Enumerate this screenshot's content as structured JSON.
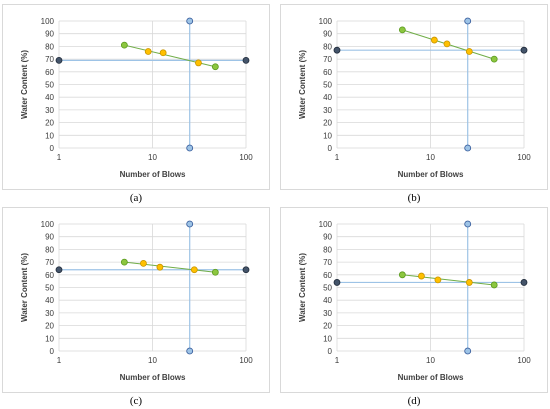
{
  "colors": {
    "wet_point": "#8cc63f",
    "wet_point_stroke": "#5a9a1e",
    "mid_point": "#ffc000",
    "mid_point_stroke": "#c89400",
    "trend_line": "#70ad47",
    "ref_line": "#9dc3e6",
    "ref_marker": "#9dc3e6",
    "ref_marker_stroke": "#2f5597",
    "ll_marker": "#44546a",
    "ll_marker_stroke": "#1f2a3a",
    "grid": "#d9d9d9"
  },
  "chart_data": [
    {
      "id": "a",
      "type": "scatter",
      "caption": "(a)",
      "xlabel": "Number of Blows",
      "ylabel": "Water Content (%)",
      "x_scale": "log",
      "xlim": [
        1,
        100
      ],
      "ylim": [
        0,
        100
      ],
      "x_ticks": [
        "1",
        "10",
        "100"
      ],
      "y_ticks": [
        "0",
        "10",
        "20",
        "30",
        "40",
        "50",
        "60",
        "70",
        "80",
        "90",
        "100"
      ],
      "trend": [
        [
          5,
          81
        ],
        [
          47,
          64
        ]
      ],
      "points": [
        {
          "x": 5,
          "y": 81,
          "kind": "wet"
        },
        {
          "x": 9,
          "y": 76,
          "kind": "mid"
        },
        {
          "x": 13,
          "y": 75,
          "kind": "mid"
        },
        {
          "x": 31,
          "y": 67,
          "kind": "mid"
        },
        {
          "x": 47,
          "y": 64,
          "kind": "wet"
        }
      ],
      "ref_vertical": {
        "x": 25,
        "y_bottom": 0,
        "y_top": 100
      },
      "liquid_limit": 69
    },
    {
      "id": "b",
      "type": "scatter",
      "caption": "(b)",
      "xlabel": "Number of Blows",
      "ylabel": "Water Content (%)",
      "x_scale": "log",
      "xlim": [
        1,
        100
      ],
      "ylim": [
        0,
        100
      ],
      "x_ticks": [
        "1",
        "10",
        "100"
      ],
      "y_ticks": [
        "0",
        "10",
        "20",
        "30",
        "40",
        "50",
        "60",
        "70",
        "80",
        "90",
        "100"
      ],
      "trend": [
        [
          5,
          93
        ],
        [
          48,
          70
        ]
      ],
      "points": [
        {
          "x": 5,
          "y": 93,
          "kind": "wet"
        },
        {
          "x": 11,
          "y": 85,
          "kind": "mid"
        },
        {
          "x": 15,
          "y": 82,
          "kind": "mid"
        },
        {
          "x": 26,
          "y": 76,
          "kind": "mid"
        },
        {
          "x": 48,
          "y": 70,
          "kind": "wet"
        }
      ],
      "ref_vertical": {
        "x": 25,
        "y_bottom": 0,
        "y_top": 100
      },
      "liquid_limit": 77
    },
    {
      "id": "c",
      "type": "scatter",
      "caption": "(c)",
      "xlabel": "Number of Blows",
      "ylabel": "Water Content (%)",
      "x_scale": "log",
      "xlim": [
        1,
        100
      ],
      "ylim": [
        0,
        100
      ],
      "x_ticks": [
        "1",
        "10",
        "100"
      ],
      "y_ticks": [
        "0",
        "10",
        "20",
        "30",
        "40",
        "50",
        "60",
        "70",
        "80",
        "90",
        "100"
      ],
      "trend": [
        [
          5,
          70
        ],
        [
          47,
          62
        ]
      ],
      "points": [
        {
          "x": 5,
          "y": 70,
          "kind": "wet"
        },
        {
          "x": 8,
          "y": 69,
          "kind": "mid"
        },
        {
          "x": 12,
          "y": 66,
          "kind": "mid"
        },
        {
          "x": 28,
          "y": 64,
          "kind": "mid"
        },
        {
          "x": 47,
          "y": 62,
          "kind": "wet"
        }
      ],
      "ref_vertical": {
        "x": 25,
        "y_bottom": 0,
        "y_top": 100
      },
      "liquid_limit": 64
    },
    {
      "id": "d",
      "type": "scatter",
      "caption": "(d)",
      "xlabel": "Number of Blows",
      "ylabel": "Water Content (%)",
      "x_scale": "log",
      "xlim": [
        1,
        100
      ],
      "ylim": [
        0,
        100
      ],
      "x_ticks": [
        "1",
        "10",
        "100"
      ],
      "y_ticks": [
        "0",
        "10",
        "20",
        "30",
        "40",
        "50",
        "60",
        "70",
        "80",
        "90",
        "100"
      ],
      "trend": [
        [
          5,
          60
        ],
        [
          48,
          52
        ]
      ],
      "points": [
        {
          "x": 5,
          "y": 60,
          "kind": "wet"
        },
        {
          "x": 8,
          "y": 59,
          "kind": "mid"
        },
        {
          "x": 12,
          "y": 56,
          "kind": "mid"
        },
        {
          "x": 26,
          "y": 54,
          "kind": "mid"
        },
        {
          "x": 48,
          "y": 52,
          "kind": "wet"
        }
      ],
      "ref_vertical": {
        "x": 25,
        "y_bottom": 0,
        "y_top": 100
      },
      "liquid_limit": 54
    }
  ]
}
